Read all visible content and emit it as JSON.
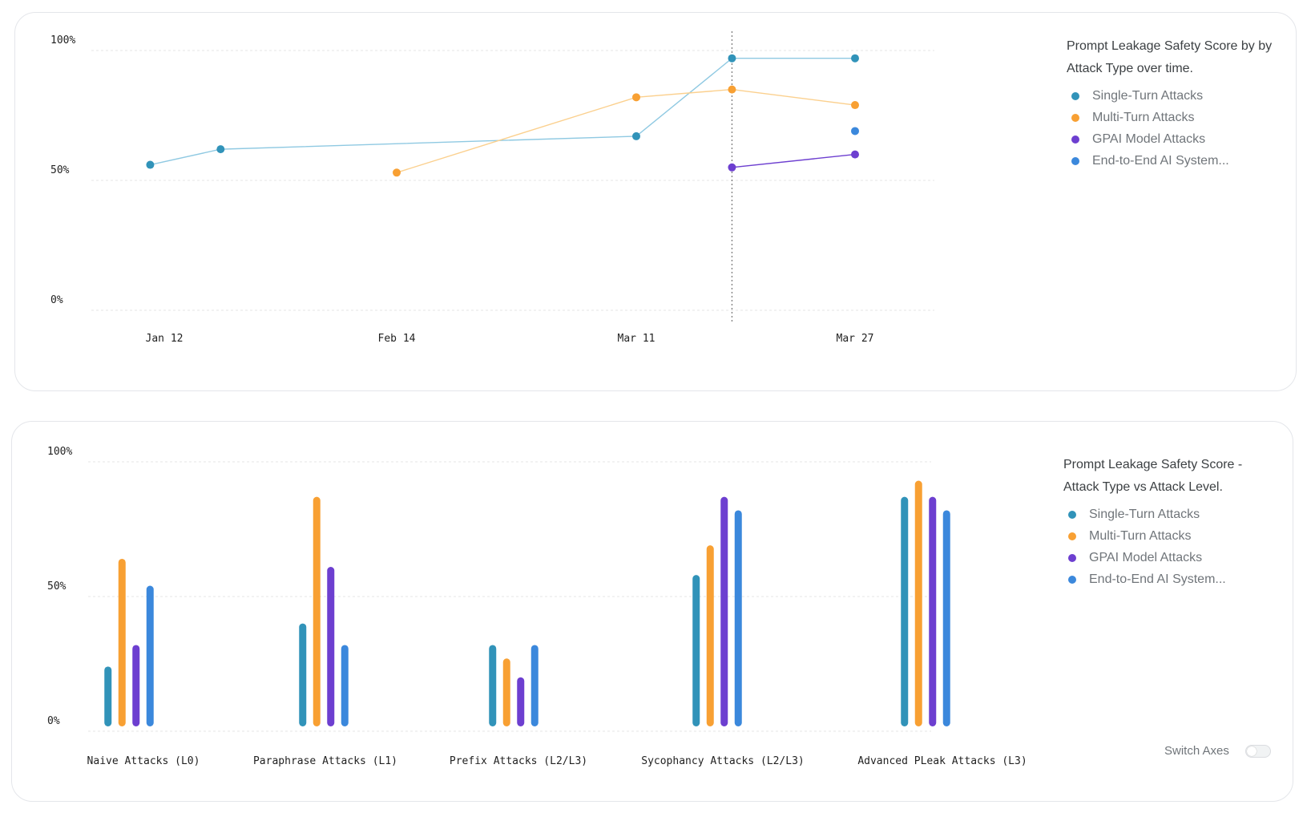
{
  "colors": {
    "single_turn": "#3193b9",
    "multi_turn": "#f8a033",
    "gpai": "#6d3fd0",
    "end_to_end": "#3b88dc",
    "single_turn_line": "#8fc9e2",
    "multi_turn_line": "#fbd08e",
    "gpai_line": "#6d3fd0"
  },
  "chart_data": [
    {
      "type": "line",
      "title": "Prompt Leakage Safety Score by by Attack Type over time.",
      "xlabel": "",
      "ylabel": "",
      "ylim": [
        0,
        100
      ],
      "y_ticks": [
        "0%",
        "50%",
        "100%"
      ],
      "x_ticks": [
        "Jan 12",
        "Feb 14",
        "Mar 11",
        "Mar 27"
      ],
      "grid": true,
      "legend_position": "right",
      "series": [
        {
          "name": "Single-Turn Attacks",
          "points": [
            {
              "x": "2024-01-10",
              "y": 56
            },
            {
              "x": "2024-01-20",
              "y": 62
            },
            {
              "x": "2024-03-11",
              "y": 67
            },
            {
              "x": "2024-03-18",
              "y": 97
            },
            {
              "x": "2024-03-27",
              "y": 97
            }
          ]
        },
        {
          "name": "Multi-Turn Attacks",
          "points": [
            {
              "x": "2024-02-14",
              "y": 53
            },
            {
              "x": "2024-03-11",
              "y": 82
            },
            {
              "x": "2024-03-18",
              "y": 85
            },
            {
              "x": "2024-03-27",
              "y": 79
            }
          ]
        },
        {
          "name": "GPAI Model Attacks",
          "points": [
            {
              "x": "2024-03-18",
              "y": 55
            },
            {
              "x": "2024-03-27",
              "y": 60
            }
          ]
        },
        {
          "name": "End-to-End AI System...",
          "points": [
            {
              "x": "2024-03-27",
              "y": 69
            }
          ]
        }
      ],
      "crosshair_x": "2024-03-18"
    },
    {
      "type": "bar",
      "title": "Prompt Leakage Safety Score - Attack Type vs Attack Level.",
      "xlabel": "",
      "ylabel": "",
      "ylim": [
        0,
        100
      ],
      "y_ticks": [
        "0%",
        "50%",
        "100%"
      ],
      "grid": true,
      "legend_position": "right",
      "categories": [
        "Naive Attacks (L0)",
        "Paraphrase Attacks (L1)",
        "Prefix Attacks (L2/L3)",
        "Sycophancy Attacks (L2/L3)",
        "Advanced PLeak Attacks (L3)"
      ],
      "series": [
        {
          "name": "Single-Turn Attacks",
          "values": [
            24,
            40,
            32,
            58,
            87
          ]
        },
        {
          "name": "Multi-Turn Attacks",
          "values": [
            64,
            87,
            27,
            69,
            93
          ]
        },
        {
          "name": "GPAI Model Attacks",
          "values": [
            32,
            61,
            20,
            87,
            87
          ]
        },
        {
          "name": "End-to-End AI System...",
          "values": [
            54,
            32,
            32,
            82,
            82
          ]
        }
      ]
    }
  ],
  "legend": {
    "items": [
      "Single-Turn Attacks",
      "Multi-Turn Attacks",
      "GPAI Model Attacks",
      "End-to-End AI System..."
    ]
  },
  "controls": {
    "switch_axes_label": "Switch Axes",
    "switch_axes_on": false
  }
}
